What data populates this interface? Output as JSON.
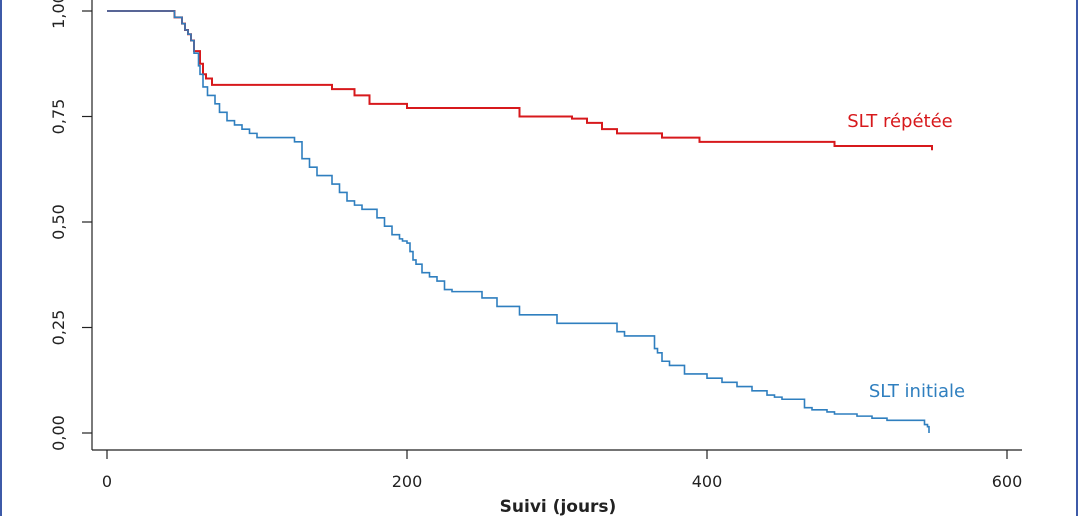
{
  "chart_data": {
    "type": "line",
    "xlabel": "Suivi (jours)",
    "ylabel": "",
    "xlim": [
      0,
      600
    ],
    "ylim": [
      0,
      1
    ],
    "x_ticks": [
      "0",
      "200",
      "400",
      "600"
    ],
    "y_ticks": [
      "0,00",
      "0,25",
      "0,50",
      "0,75",
      "1,00"
    ],
    "grid": false,
    "series": [
      {
        "name": "SLT répétée",
        "color": "#d7191c",
        "x": [
          0,
          45,
          50,
          52,
          54,
          56,
          58,
          62,
          64,
          66,
          70,
          75,
          100,
          150,
          155,
          165,
          175,
          200,
          250,
          275,
          310,
          320,
          330,
          340,
          370,
          395,
          480,
          485,
          550
        ],
        "y": [
          1.0,
          0.985,
          0.97,
          0.955,
          0.945,
          0.93,
          0.905,
          0.875,
          0.85,
          0.84,
          0.825,
          0.825,
          0.825,
          0.815,
          0.815,
          0.8,
          0.78,
          0.77,
          0.77,
          0.75,
          0.745,
          0.735,
          0.72,
          0.71,
          0.7,
          0.69,
          0.69,
          0.68,
          0.67
        ]
      },
      {
        "name": "SLT initiale",
        "color": "#2f7fbf",
        "x": [
          0,
          45,
          50,
          52,
          54,
          56,
          58,
          61,
          62,
          64,
          67,
          72,
          75,
          80,
          85,
          90,
          95,
          100,
          110,
          125,
          130,
          135,
          140,
          150,
          155,
          160,
          165,
          170,
          180,
          185,
          190,
          195,
          197,
          200,
          202,
          204,
          206,
          210,
          215,
          220,
          225,
          230,
          250,
          260,
          275,
          300,
          310,
          340,
          345,
          365,
          367,
          370,
          375,
          385,
          400,
          410,
          420,
          430,
          440,
          445,
          450,
          465,
          470,
          480,
          485,
          500,
          510,
          520,
          545,
          547,
          548
        ],
        "y": [
          1.0,
          0.985,
          0.97,
          0.955,
          0.945,
          0.93,
          0.9,
          0.87,
          0.85,
          0.82,
          0.8,
          0.78,
          0.76,
          0.74,
          0.73,
          0.72,
          0.71,
          0.7,
          0.7,
          0.69,
          0.65,
          0.63,
          0.61,
          0.59,
          0.57,
          0.55,
          0.54,
          0.53,
          0.51,
          0.49,
          0.47,
          0.46,
          0.455,
          0.45,
          0.43,
          0.41,
          0.4,
          0.38,
          0.37,
          0.36,
          0.34,
          0.335,
          0.32,
          0.3,
          0.28,
          0.26,
          0.26,
          0.24,
          0.23,
          0.2,
          0.19,
          0.17,
          0.16,
          0.14,
          0.13,
          0.12,
          0.11,
          0.1,
          0.09,
          0.085,
          0.08,
          0.06,
          0.055,
          0.05,
          0.045,
          0.04,
          0.035,
          0.03,
          0.02,
          0.015,
          0.0
        ]
      }
    ]
  }
}
